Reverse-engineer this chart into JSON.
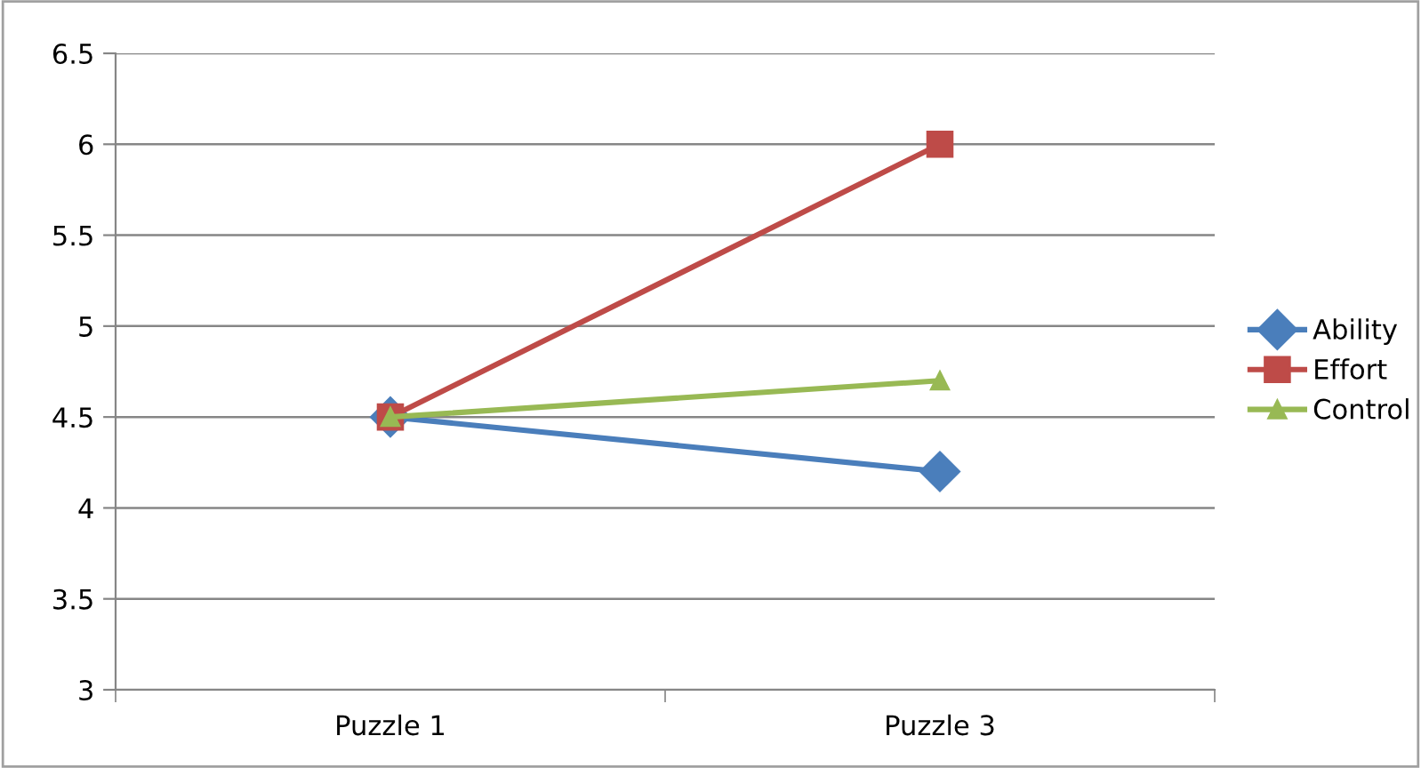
{
  "chart_data": {
    "type": "line",
    "categories": [
      "Puzzle 1",
      "Puzzle 3"
    ],
    "series": [
      {
        "name": "Ability",
        "color": "#4a7ebb",
        "marker": "diamond",
        "values": [
          4.5,
          4.2
        ]
      },
      {
        "name": "Effort",
        "color": "#be4b48",
        "marker": "square",
        "values": [
          4.5,
          6
        ]
      },
      {
        "name": "Control",
        "color": "#98b954",
        "marker": "triangle",
        "values": [
          4.5,
          4.7
        ]
      }
    ],
    "ylim": [
      3,
      6.5
    ],
    "yticks": [
      3,
      3.5,
      4,
      4.5,
      5,
      5.5,
      6,
      6.5
    ],
    "grid": "y",
    "legend": "right",
    "line_style": "solid"
  }
}
